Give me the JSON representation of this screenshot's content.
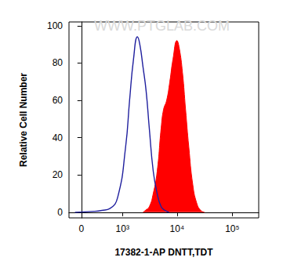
{
  "chart_data": {
    "type": "histogram",
    "x_label": "17382-1-AP DNTT,TDT",
    "y_label": "Relative Cell Number",
    "annotations": [
      "WWW.PTGLAB.COM"
    ],
    "log": "x",
    "xlim": [
      -200,
      300000
    ],
    "xticks": [
      0,
      {
        "value": 1000,
        "label": "10³"
      },
      {
        "value": 10000,
        "label": "10⁴"
      },
      {
        "value": 100000,
        "label": "10⁵"
      }
    ],
    "ylim": [
      -3,
      102
    ],
    "yticks": [
      0,
      20,
      40,
      60,
      80,
      100
    ],
    "series": [
      {
        "type": "line",
        "color": "#1f1f9e",
        "x": [
          -100,
          205,
          358,
          551,
          803,
          1146,
          1362,
          1611,
          1905,
          2106,
          2407,
          2749,
          3140,
          3705,
          4371,
          5152,
          6078,
          7168
        ],
        "values": [
          0,
          0.5,
          1,
          2,
          8,
          35,
          60,
          82,
          94,
          90,
          78,
          65,
          45,
          22,
          10,
          3,
          1,
          0
        ]
      },
      {
        "type": "area",
        "color": "#ff0000",
        "x": [
          2407,
          2660,
          3140,
          3705,
          4371,
          5152,
          5692,
          6491,
          7403,
          8444,
          9970,
          10974,
          12536,
          14285,
          16331,
          19232,
          22655,
          26747,
          31508
        ],
        "values": [
          0,
          1,
          3,
          10,
          22,
          45,
          55,
          60,
          70,
          82,
          92,
          88,
          75,
          55,
          35,
          15,
          5,
          1,
          0
        ]
      }
    ]
  }
}
